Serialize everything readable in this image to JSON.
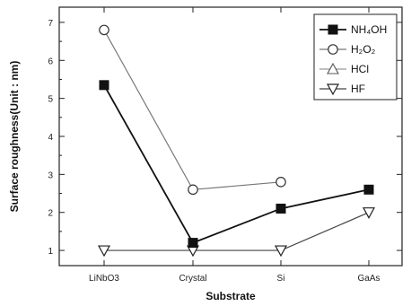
{
  "chart_data": {
    "type": "line",
    "title": "",
    "xlabel": "Substrate",
    "ylabel": "Surface roughness(Unit : nm)",
    "categories": [
      "LiNbO3",
      "Crystal",
      "Si",
      "GaAs"
    ],
    "ylim": [
      0.6,
      7.4
    ],
    "yticks": [
      1,
      2,
      3,
      4,
      5,
      6,
      7
    ],
    "grid": false,
    "legend_position": "top-right",
    "series": [
      {
        "name": "NH₄OH",
        "marker": "filled-square",
        "color": "#111111",
        "values": [
          5.35,
          1.2,
          2.1,
          2.6
        ]
      },
      {
        "name": "H₂O₂",
        "marker": "open-circle",
        "color": "#777777",
        "values": [
          6.8,
          2.6,
          2.8,
          null
        ]
      },
      {
        "name": "HCl",
        "marker": "open-triangle-up",
        "color": "#999999",
        "values": [
          null,
          null,
          null,
          null
        ]
      },
      {
        "name": "HF",
        "marker": "open-triangle-down",
        "color": "#444444",
        "values": [
          1.0,
          1.0,
          1.0,
          2.0
        ]
      }
    ]
  }
}
